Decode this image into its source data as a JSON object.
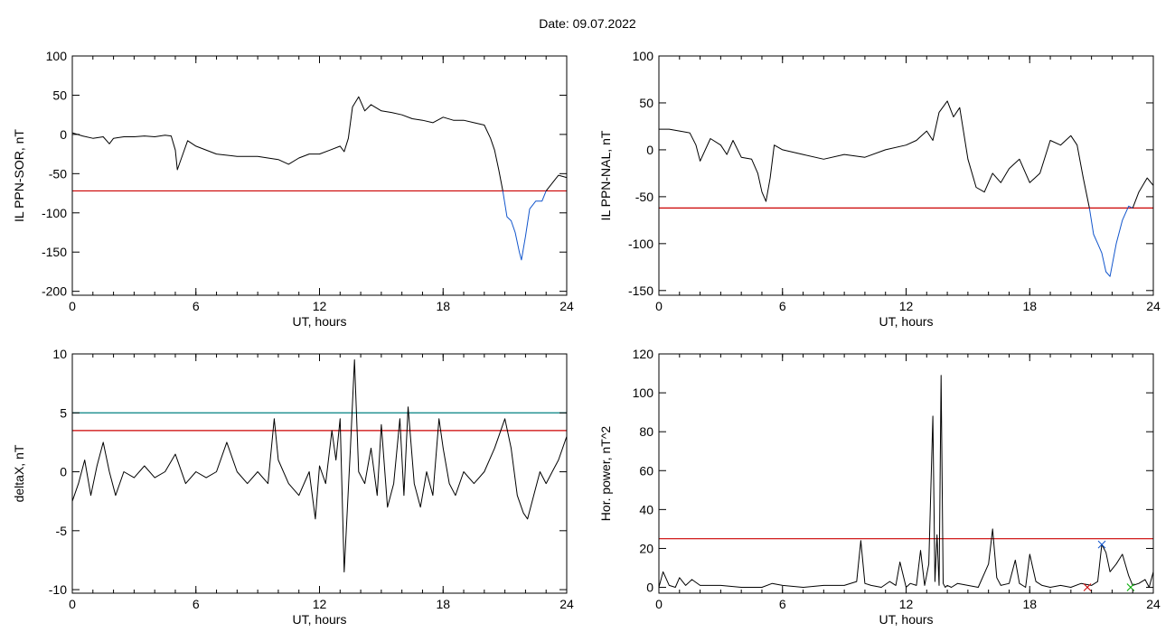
{
  "header": {
    "date_label": "Date:  09.07.2022"
  },
  "chart_data": [
    {
      "type": "line",
      "ylabel": "IL PPN-SOR, nT",
      "xlabel": "UT, hours",
      "xlim": [
        0,
        24
      ],
      "ylim": [
        -205,
        100
      ],
      "xticks": [
        0,
        6,
        12,
        18,
        24
      ],
      "yticks": [
        100,
        50,
        0,
        -50,
        -100,
        -150,
        -200
      ],
      "threshold": {
        "value": -72,
        "color": "#cc0000"
      },
      "series": [
        {
          "color": "#000000",
          "x": [
            0,
            0.5,
            1,
            1.5,
            1.8,
            2,
            2.5,
            3,
            3.5,
            4,
            4.5,
            4.8,
            5.0,
            5.1,
            5.3,
            5.6,
            6,
            7,
            8,
            9,
            10,
            10.5,
            11,
            11.5,
            12,
            12.5,
            13,
            13.2,
            13.4,
            13.6,
            13.9,
            14.2,
            14.5,
            15,
            15.5,
            16,
            16.5,
            17,
            17.5,
            18,
            18.5,
            19,
            19.5,
            20,
            20.3,
            20.5,
            20.7,
            20.9
          ],
          "y": [
            2,
            -2,
            -5,
            -3,
            -12,
            -5,
            -3,
            -3,
            -2,
            -3,
            -1,
            -2,
            -20,
            -45,
            -30,
            -8,
            -15,
            -25,
            -28,
            -28,
            -32,
            -38,
            -30,
            -25,
            -25,
            -20,
            -15,
            -22,
            -5,
            35,
            48,
            30,
            38,
            30,
            28,
            25,
            20,
            18,
            15,
            22,
            18,
            18,
            15,
            12,
            -5,
            -20,
            -45,
            -72
          ]
        },
        {
          "color": "#1155cc",
          "x": [
            20.9,
            21.1,
            21.3,
            21.5,
            21.7,
            21.8,
            22.0,
            22.2,
            22.5,
            22.8,
            23.0
          ],
          "y": [
            -72,
            -105,
            -110,
            -125,
            -150,
            -160,
            -130,
            -95,
            -85,
            -85,
            -72
          ]
        },
        {
          "color": "#000000",
          "x": [
            23.0,
            23.3,
            23.6,
            24
          ],
          "y": [
            -72,
            -62,
            -52,
            -55
          ]
        }
      ]
    },
    {
      "type": "line",
      "ylabel": "IL PPN-NAL, nT",
      "xlabel": "UT, hours",
      "xlim": [
        0,
        24
      ],
      "ylim": [
        -155,
        100
      ],
      "xticks": [
        0,
        6,
        12,
        18,
        24
      ],
      "yticks": [
        100,
        50,
        0,
        -50,
        -100,
        -150
      ],
      "threshold": {
        "value": -62,
        "color": "#cc0000"
      },
      "series": [
        {
          "color": "#000000",
          "x": [
            0,
            0.5,
            1,
            1.5,
            1.8,
            2.0,
            2.5,
            3.0,
            3.3,
            3.6,
            4.0,
            4.5,
            4.8,
            5.0,
            5.2,
            5.4,
            5.6,
            6,
            7,
            8,
            9,
            10,
            11,
            12,
            12.5,
            13,
            13.3,
            13.6,
            14.0,
            14.3,
            14.6,
            15.0,
            15.4,
            15.8,
            16.2,
            16.6,
            17,
            17.5,
            18,
            18.5,
            19.0,
            19.5,
            20.0,
            20.3,
            20.6,
            20.9
          ],
          "y": [
            22,
            22,
            20,
            18,
            5,
            -12,
            12,
            5,
            -5,
            10,
            -8,
            -10,
            -25,
            -45,
            -55,
            -30,
            5,
            0,
            -5,
            -10,
            -5,
            -8,
            0,
            5,
            10,
            20,
            10,
            40,
            52,
            35,
            45,
            -10,
            -40,
            -45,
            -25,
            -35,
            -20,
            -10,
            -35,
            -25,
            10,
            5,
            15,
            5,
            -30,
            -62
          ]
        },
        {
          "color": "#1155cc",
          "x": [
            20.9,
            21.1,
            21.3,
            21.5,
            21.7,
            21.9,
            22.2,
            22.5,
            22.8,
            23.0
          ],
          "y": [
            -62,
            -90,
            -100,
            -110,
            -130,
            -135,
            -100,
            -75,
            -60,
            -62
          ]
        },
        {
          "color": "#000000",
          "x": [
            23.0,
            23.3,
            23.7,
            24
          ],
          "y": [
            -62,
            -45,
            -30,
            -38
          ]
        }
      ]
    },
    {
      "type": "line",
      "ylabel": "deltaX, nT",
      "xlabel": "UT, hours",
      "xlim": [
        0,
        24
      ],
      "ylim": [
        -10.3,
        10
      ],
      "xticks": [
        0,
        6,
        12,
        18,
        24
      ],
      "yticks": [
        10,
        5,
        0,
        -5,
        -10
      ],
      "thresholds": [
        {
          "value": 5,
          "color": "#008080"
        },
        {
          "value": 3.5,
          "color": "#cc0000"
        }
      ],
      "series": [
        {
          "color": "#000000",
          "x": [
            0,
            0.3,
            0.6,
            0.9,
            1.2,
            1.5,
            1.8,
            2.1,
            2.5,
            3,
            3.5,
            4,
            4.5,
            5,
            5.5,
            6,
            6.5,
            7,
            7.5,
            8,
            8.5,
            9,
            9.5,
            9.8,
            10,
            10.5,
            11,
            11.5,
            11.8,
            12,
            12.3,
            12.6,
            12.8,
            13.0,
            13.2,
            13.5,
            13.7,
            13.9,
            14.2,
            14.5,
            14.8,
            15.0,
            15.3,
            15.6,
            15.9,
            16.1,
            16.3,
            16.6,
            16.9,
            17.2,
            17.5,
            17.8,
            18.0,
            18.3,
            18.6,
            19,
            19.5,
            20,
            20.5,
            21,
            21.3,
            21.6,
            21.9,
            22.1,
            22.4,
            22.7,
            23.0,
            23.3,
            23.6,
            24
          ],
          "y": [
            -2.5,
            -1,
            1,
            -2,
            0.5,
            2.5,
            0,
            -2,
            0,
            -0.5,
            0.5,
            -0.5,
            0,
            1.5,
            -1,
            0,
            -0.5,
            0,
            2.5,
            0,
            -1,
            0,
            -1,
            4.5,
            1,
            -1,
            -2,
            0,
            -4,
            0.5,
            -1,
            3.5,
            1,
            4.5,
            -8.5,
            2,
            9.5,
            0,
            -1,
            2,
            -2,
            4,
            -3,
            -1,
            4.5,
            -2,
            5.5,
            -1,
            -3,
            0,
            -2,
            4.5,
            2,
            -1,
            -2,
            0,
            -1,
            0,
            2,
            4.5,
            2,
            -2,
            -3.5,
            -4,
            -2,
            0,
            -1,
            0,
            1,
            3
          ]
        }
      ]
    },
    {
      "type": "line",
      "ylabel": "Hor. power, nT^2",
      "xlabel": "UT, hours",
      "xlim": [
        0,
        24
      ],
      "ylim": [
        -3,
        120
      ],
      "xticks": [
        0,
        6,
        12,
        18,
        24
      ],
      "yticks": [
        120,
        100,
        80,
        60,
        40,
        20,
        0
      ],
      "threshold": {
        "value": 25,
        "color": "#cc0000"
      },
      "series": [
        {
          "color": "#000000",
          "x": [
            0,
            0.2,
            0.5,
            0.8,
            1.0,
            1.3,
            1.6,
            2,
            3,
            4,
            5,
            5.5,
            6,
            7,
            8,
            9,
            9.6,
            9.8,
            10.0,
            10.3,
            10.8,
            11.2,
            11.5,
            11.7,
            12.0,
            12.2,
            12.5,
            12.7,
            12.9,
            13.1,
            13.3,
            13.4,
            13.5,
            13.6,
            13.7,
            13.8,
            13.9,
            14.0,
            14.2,
            14.5,
            15,
            15.5,
            16.0,
            16.2,
            16.4,
            16.6,
            17,
            17.3,
            17.5,
            17.8,
            18.0,
            18.3,
            18.6,
            19,
            19.5,
            20,
            20.5,
            21.0,
            21.3,
            21.5,
            21.7,
            21.9,
            22.2,
            22.5,
            22.8,
            23.0,
            23.3,
            23.6,
            23.8,
            24
          ],
          "y": [
            0,
            8,
            1,
            0,
            5,
            1,
            4,
            1,
            1,
            0,
            0,
            2,
            1,
            0,
            1,
            1,
            3,
            24,
            2,
            1,
            0,
            3,
            1,
            13,
            0,
            2,
            1,
            19,
            1,
            12,
            88,
            3,
            27,
            1,
            109,
            2,
            0,
            1,
            0,
            2,
            1,
            0,
            12,
            30,
            5,
            1,
            2,
            14,
            2,
            0,
            17,
            3,
            1,
            0,
            1,
            0,
            2,
            1,
            3,
            22,
            18,
            8,
            12,
            17,
            6,
            1,
            2,
            4,
            0,
            8
          ]
        }
      ],
      "markers": [
        {
          "x": 21.5,
          "y": 22,
          "symbol": "x",
          "color": "#1155cc"
        },
        {
          "x": 20.8,
          "y": 0,
          "symbol": "x",
          "color": "#cc0000"
        },
        {
          "x": 22.9,
          "y": 0,
          "symbol": "x",
          "color": "#00aa00"
        }
      ]
    }
  ]
}
